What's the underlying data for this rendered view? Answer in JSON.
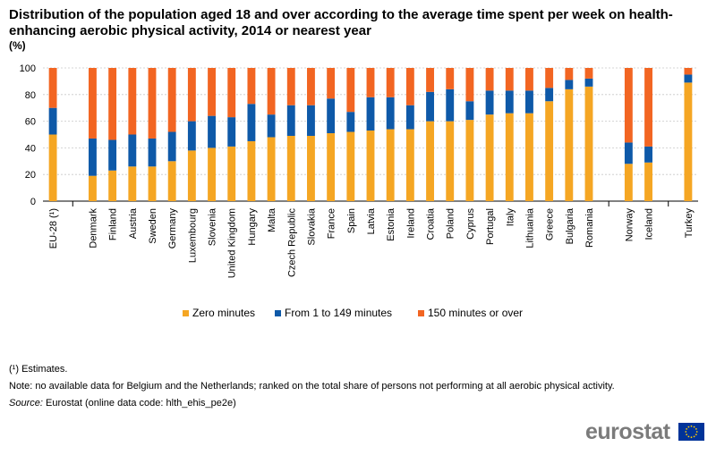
{
  "header": {
    "title": "Distribution of the population aged 18 and over according to the average time spent per week on health-enhancing aerobic physical activity, 2014 or nearest year",
    "unit": "(%)"
  },
  "chart_data": {
    "type": "bar",
    "stacked": true,
    "title": "Distribution of the population aged 18 and over according to the average time spent per week on health-enhancing aerobic physical activity, 2014 or nearest year",
    "xlabel": "",
    "ylabel": "(%)",
    "ylim": [
      0,
      100
    ],
    "yticks": [
      0,
      20,
      40,
      60,
      80,
      100
    ],
    "grid": true,
    "legend_position": "bottom",
    "categories": [
      "EU-28 (¹)",
      "Denmark",
      "Finland",
      "Austria",
      "Sweden",
      "Germany",
      "Luxembourg",
      "Slovenia",
      "United Kingdom",
      "Hungary",
      "Malta",
      "Czech Republic",
      "Slovakia",
      "France",
      "Spain",
      "Latvia",
      "Estonia",
      "Ireland",
      "Croatia",
      "Poland",
      "Cyprus",
      "Portugal",
      "Italy",
      "Lithuania",
      "Greece",
      "Bulgaria",
      "Romania",
      "Norway",
      "Iceland",
      "Turkey"
    ],
    "groups": [
      1,
      26,
      2,
      1
    ],
    "series": [
      {
        "name": "Zero minutes",
        "color": "#f5a623",
        "values": [
          50,
          19,
          23,
          26,
          26,
          30,
          38,
          40,
          41,
          45,
          48,
          49,
          49,
          51,
          52,
          53,
          54,
          54,
          60,
          60,
          61,
          65,
          66,
          66,
          75,
          84,
          86,
          28,
          29,
          89
        ]
      },
      {
        "name": "From 1 to 149 minutes",
        "color": "#0e59a8",
        "values": [
          20,
          28,
          23,
          24,
          21,
          22,
          22,
          24,
          22,
          28,
          17,
          23,
          23,
          26,
          15,
          25,
          24,
          18,
          22,
          24,
          14,
          18,
          17,
          17,
          10,
          7,
          6,
          16,
          12,
          6
        ]
      },
      {
        "name": "150 minutes or over",
        "color": "#f26522",
        "values": [
          30,
          53,
          54,
          50,
          53,
          48,
          40,
          36,
          37,
          27,
          35,
          28,
          28,
          23,
          33,
          22,
          22,
          28,
          18,
          16,
          25,
          17,
          17,
          17,
          15,
          9,
          8,
          56,
          59,
          5
        ]
      }
    ]
  },
  "notes": {
    "footnote_marker": "(¹)",
    "footnote_text": "Estimates.",
    "note": "Note: no available data for Belgium and the Netherlands; ranked on the total share of persons not performing at all aerobic physical activity.",
    "source_label": "Source:",
    "source_text": "Eurostat (online data code: hlth_ehis_pe2e)"
  },
  "branding": {
    "logo_text": "eurostat",
    "logo_color": "#7b7b7b",
    "flag_color": "#003399",
    "star_color": "#ffcc00"
  }
}
